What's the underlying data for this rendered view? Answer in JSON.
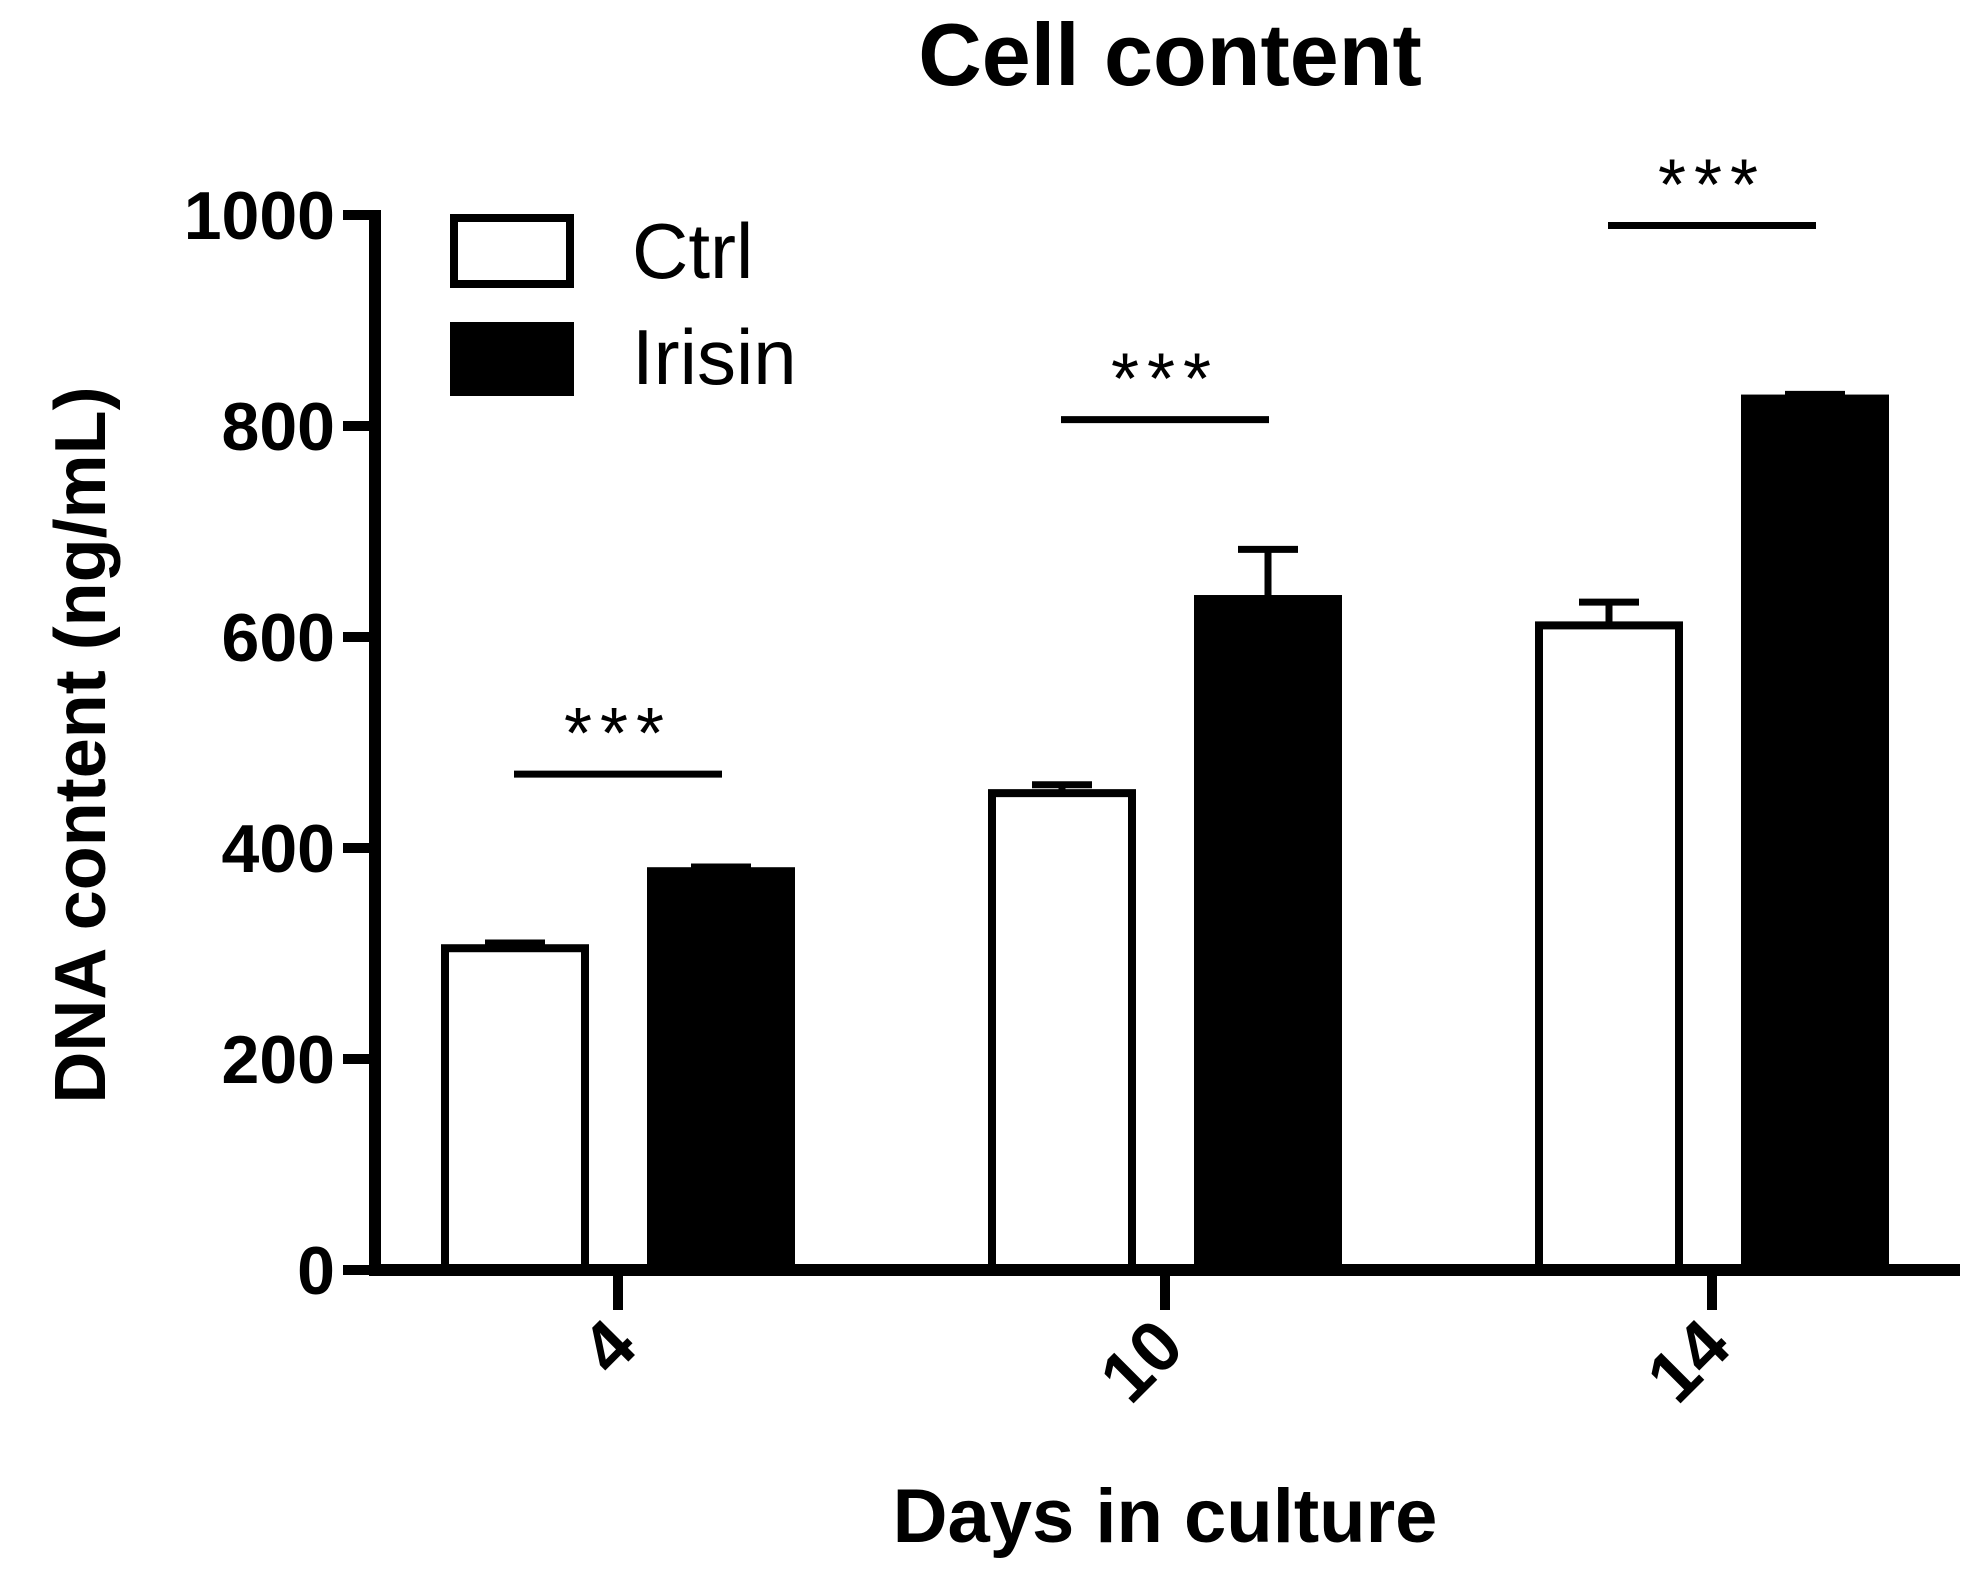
{
  "chart_data": {
    "type": "bar",
    "title": "Cell content",
    "xlabel": "Days in culture",
    "ylabel": "DNA content (ng/mL)",
    "categories": [
      "4",
      "10",
      "14"
    ],
    "ylim": [
      0,
      1000
    ],
    "yticks": [
      0,
      200,
      400,
      600,
      800,
      1000
    ],
    "series": [
      {
        "name": "Ctrl",
        "fill": "#ffffff",
        "values": [
          305,
          452,
          611
        ],
        "errors": [
          5,
          8,
          22
        ]
      },
      {
        "name": "Irisin",
        "fill": "#000000",
        "values": [
          378,
          636,
          826
        ],
        "errors": [
          4,
          47,
          4
        ]
      }
    ],
    "annotations": [
      {
        "category": "4",
        "label": "***",
        "level": 470
      },
      {
        "category": "10",
        "label": "***",
        "level": 806
      },
      {
        "category": "14",
        "label": "***",
        "level": 990
      }
    ],
    "legend_position": "top-left",
    "grid": false,
    "colors": {
      "axis": "#000000",
      "ctrl": "#ffffff",
      "irisin": "#000000"
    }
  }
}
